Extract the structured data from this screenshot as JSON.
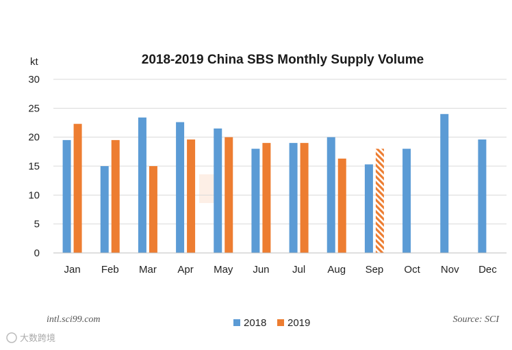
{
  "chart_data": {
    "type": "bar",
    "title": "2018-2019 China SBS Monthly Supply Volume",
    "ylabel": "kt",
    "xlabel": "",
    "ylim": [
      0,
      30
    ],
    "yticks": [
      0,
      5,
      10,
      15,
      20,
      25,
      30
    ],
    "grid": true,
    "legend": "bottom-center",
    "categories": [
      "Jan",
      "Feb",
      "Mar",
      "Apr",
      "May",
      "Jun",
      "Jul",
      "Aug",
      "Sep",
      "Oct",
      "Nov",
      "Dec"
    ],
    "series": [
      {
        "name": "2018",
        "color": "#5B9BD5",
        "values": [
          19.5,
          15.0,
          23.4,
          22.6,
          21.5,
          18.0,
          19.0,
          20.0,
          15.3,
          18.0,
          24.0,
          19.6
        ]
      },
      {
        "name": "2019",
        "color": "#ED7D31",
        "values": [
          22.3,
          19.5,
          15.0,
          19.6,
          20.0,
          19.0,
          19.0,
          16.3,
          18.0,
          null,
          null,
          null
        ],
        "hatched_categories": [
          "Sep"
        ]
      }
    ]
  },
  "footer": {
    "left_text": "intl.sci99.com",
    "right_text": "Source: SCI"
  },
  "watermark": {
    "text": "大数跨境"
  }
}
